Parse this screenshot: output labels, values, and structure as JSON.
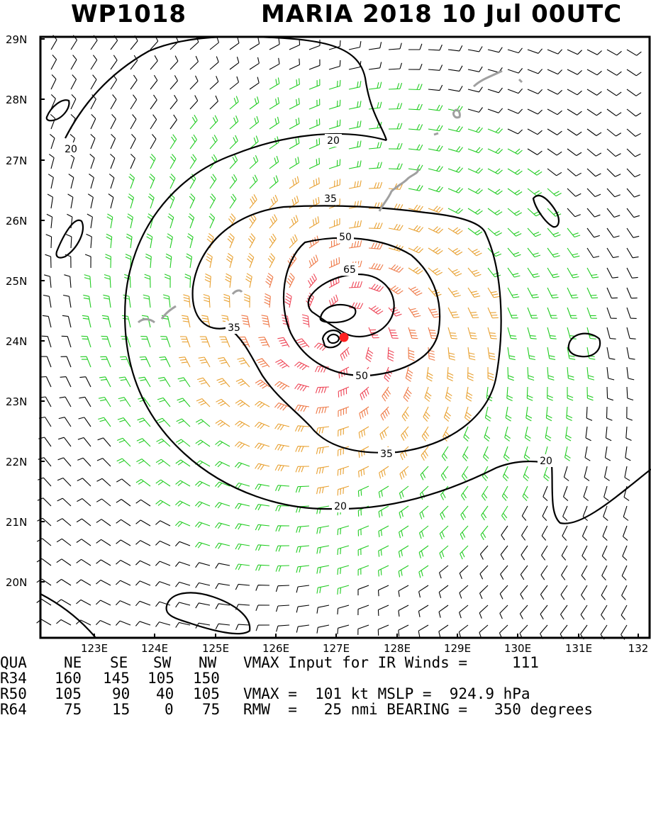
{
  "header": {
    "storm_id": "WP1018",
    "title": "MARIA 2018 10 Jul 00UTC"
  },
  "map": {
    "latitudes": [
      "29N",
      "28N",
      "27N",
      "26N",
      "25N",
      "24N",
      "23N",
      "22N",
      "21N",
      "20N"
    ],
    "longitudes": [
      "123E",
      "124E",
      "125E",
      "126E",
      "127E",
      "128E",
      "129E",
      "130E",
      "131E",
      "132"
    ],
    "contour_labels": [
      "20",
      "20",
      "20",
      "20",
      "35",
      "35",
      "35",
      "50",
      "50",
      "65"
    ],
    "storm_center": {
      "lat": 24.0,
      "lon": 127.1
    },
    "colors": {
      "contour": "#000000",
      "coast": "#a0a0a0",
      "center_marker": "#ff2020",
      "barb_light": "#000000",
      "barb_34kt": "#22cc22",
      "barb_50kt": "#e8a030",
      "barb_64kt": "#ee7744",
      "barb_core": "#ee4455"
    }
  },
  "stats": {
    "quad_row": {
      "label": "QUA",
      "ne": "NE",
      "se": "SE",
      "sw": "SW",
      "nw": "NW",
      "text": "VMAX Input for IR Winds =",
      "value": "111"
    },
    "r34": {
      "label": "R34",
      "ne": "160",
      "se": "145",
      "sw": "105",
      "nw": "150"
    },
    "r50": {
      "label": "R50",
      "ne": "105",
      "se": "90",
      "sw": "40",
      "nw": "105",
      "text": "VMAX =  101 kt MSLP =  924.9 hPa"
    },
    "r64": {
      "label": "R64",
      "ne": "75",
      "se": "15",
      "sw": "0",
      "nw": "75",
      "text": "RMW  =   25 nmi BEARING =   350 degrees"
    }
  }
}
